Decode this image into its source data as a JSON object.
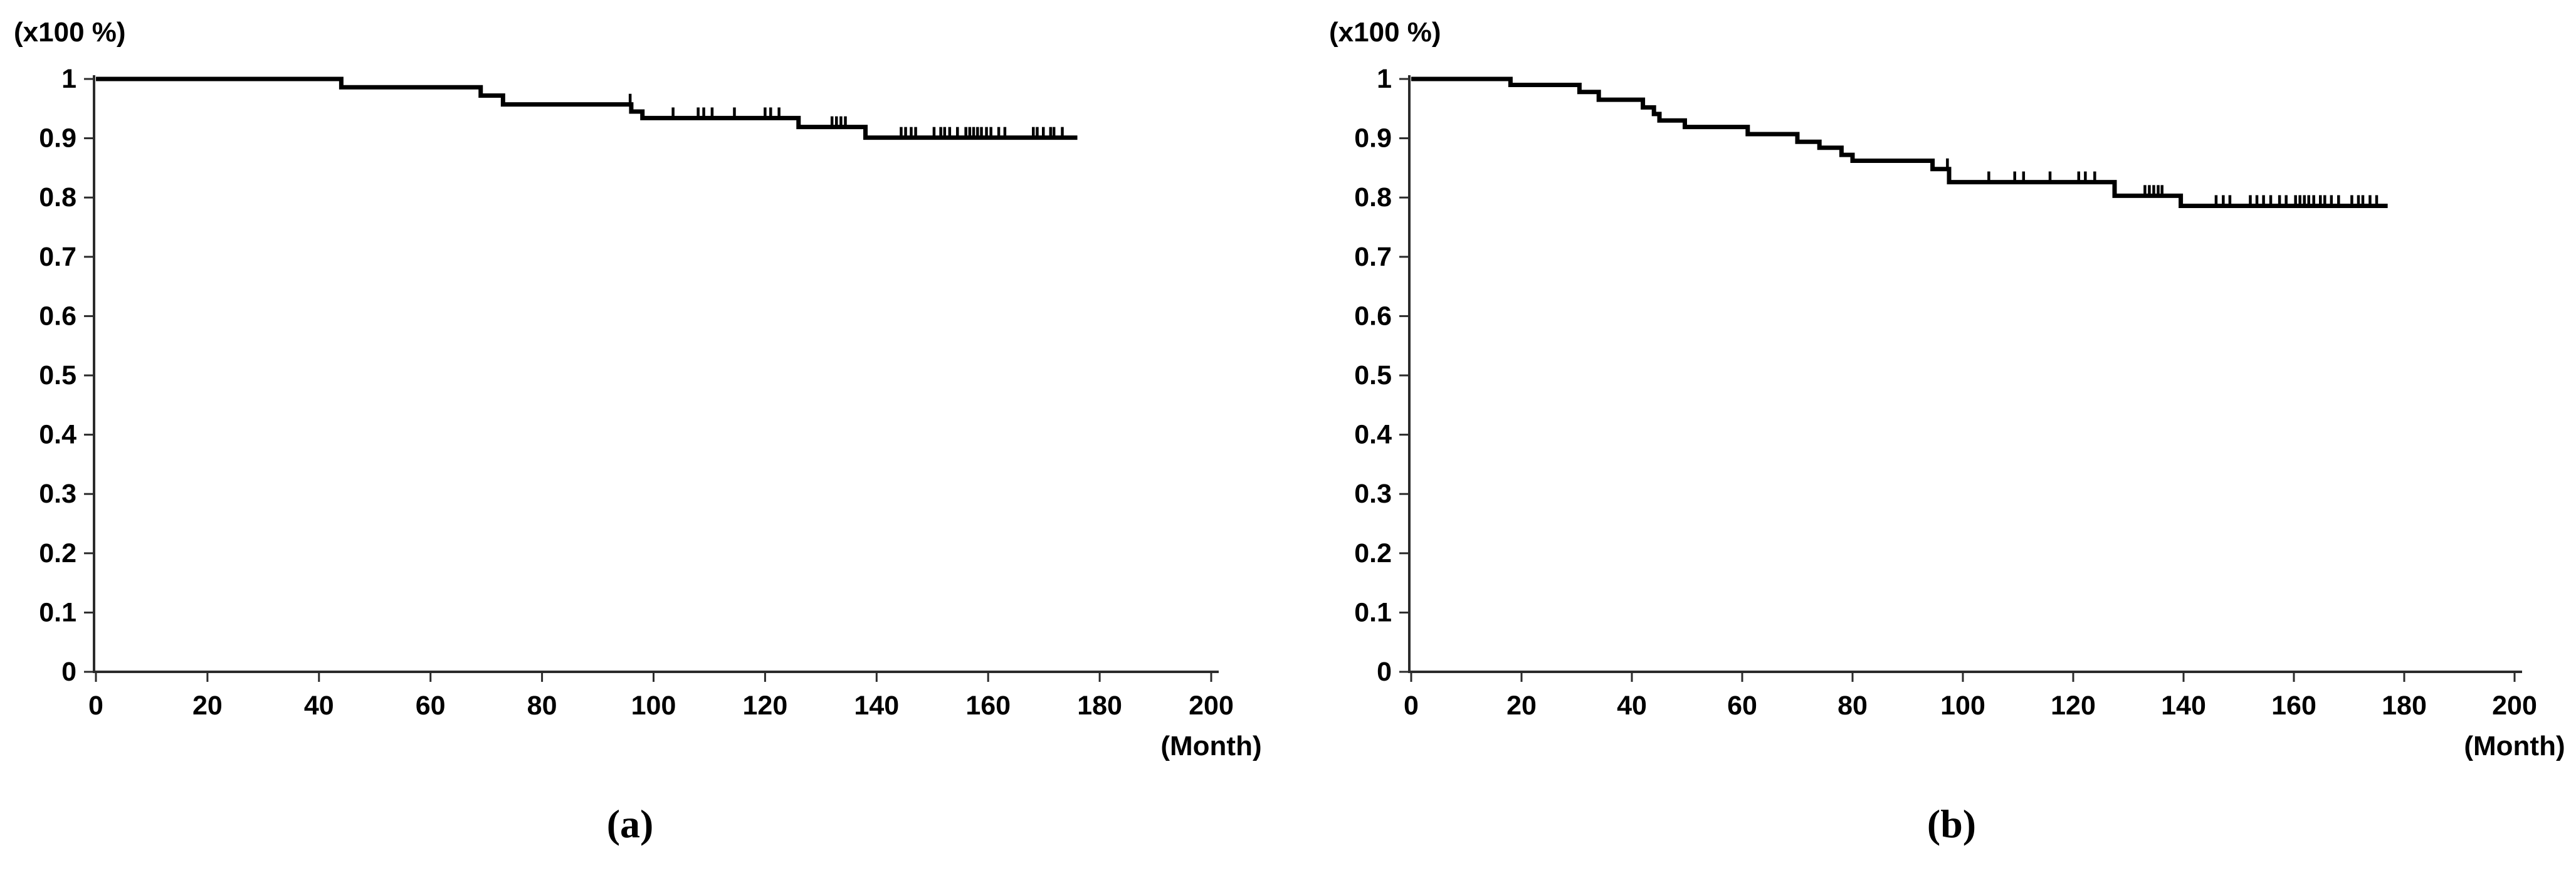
{
  "figure": {
    "background_color": "#ffffff",
    "curve_color": "#000000",
    "axis_color": "#2b2b2b",
    "tick_label_color": "#000000"
  },
  "chart_data": [
    {
      "type": "line",
      "subtype": "kaplan-meier-step",
      "caption": "(a)",
      "y_unit_label": "(x100 %)",
      "x_unit_label": "(Month)",
      "xlim": [
        0,
        200
      ],
      "ylim": [
        0,
        1
      ],
      "grid": false,
      "legend": "none",
      "x_ticks": [
        {
          "v": 0,
          "label": "0"
        },
        {
          "v": 20,
          "label": "20"
        },
        {
          "v": 40,
          "label": "40"
        },
        {
          "v": 60,
          "label": "60"
        },
        {
          "v": 80,
          "label": "80"
        },
        {
          "v": 100,
          "label": "100"
        },
        {
          "v": 120,
          "label": "120"
        },
        {
          "v": 140,
          "label": "140"
        },
        {
          "v": 160,
          "label": "160"
        },
        {
          "v": 180,
          "label": "180"
        },
        {
          "v": 200,
          "label": "200"
        }
      ],
      "y_ticks": [
        {
          "v": 0,
          "label": "0"
        },
        {
          "v": 0.1,
          "label": "0.1"
        },
        {
          "v": 0.2,
          "label": "0.2"
        },
        {
          "v": 0.3,
          "label": "0.3"
        },
        {
          "v": 0.4,
          "label": "0.4"
        },
        {
          "v": 0.5,
          "label": "0.5"
        },
        {
          "v": 0.6,
          "label": "0.6"
        },
        {
          "v": 0.7,
          "label": "0.7"
        },
        {
          "v": 0.8,
          "label": "0.8"
        },
        {
          "v": 0.9,
          "label": "0.9"
        },
        {
          "v": 1,
          "label": "1"
        }
      ],
      "steps": [
        [
          0,
          1.0
        ],
        [
          44,
          0.986
        ],
        [
          69,
          0.972
        ],
        [
          73,
          0.957
        ],
        [
          96,
          0.945
        ],
        [
          98,
          0.934
        ],
        [
          126,
          0.919
        ],
        [
          138,
          0.901
        ]
      ],
      "end_month": 176,
      "censor_months": [
        95.8,
        103.5,
        108,
        109,
        110.5,
        114.5,
        120,
        121,
        122.5,
        132,
        132.8,
        133.6,
        134.4,
        144.4,
        145.2,
        146.2,
        147,
        150.3,
        151.5,
        152.2,
        153.1,
        154.5,
        156,
        156.7,
        157.4,
        158.1,
        158.8,
        159.7,
        160.5,
        161.9,
        163,
        168.1,
        168.8,
        169.9,
        171.2,
        171.8,
        173.3
      ]
    },
    {
      "type": "line",
      "subtype": "kaplan-meier-step",
      "caption": "(b)",
      "y_unit_label": "(x100 %)",
      "x_unit_label": "(Month)",
      "xlim": [
        0,
        200
      ],
      "ylim": [
        0,
        1
      ],
      "grid": false,
      "legend": "none",
      "x_ticks": [
        {
          "v": 0,
          "label": "0"
        },
        {
          "v": 20,
          "label": "20"
        },
        {
          "v": 40,
          "label": "40"
        },
        {
          "v": 60,
          "label": "60"
        },
        {
          "v": 80,
          "label": "80"
        },
        {
          "v": 100,
          "label": "100"
        },
        {
          "v": 120,
          "label": "120"
        },
        {
          "v": 140,
          "label": "140"
        },
        {
          "v": 160,
          "label": "160"
        },
        {
          "v": 180,
          "label": "180"
        },
        {
          "v": 200,
          "label": "200"
        }
      ],
      "y_ticks": [
        {
          "v": 0,
          "label": "0"
        },
        {
          "v": 0.1,
          "label": "0.1"
        },
        {
          "v": 0.2,
          "label": "0.2"
        },
        {
          "v": 0.3,
          "label": "0.3"
        },
        {
          "v": 0.4,
          "label": "0.4"
        },
        {
          "v": 0.5,
          "label": "0.5"
        },
        {
          "v": 0.6,
          "label": "0.6"
        },
        {
          "v": 0.7,
          "label": "0.7"
        },
        {
          "v": 0.8,
          "label": "0.8"
        },
        {
          "v": 0.9,
          "label": "0.9"
        },
        {
          "v": 1,
          "label": "1"
        }
      ],
      "steps": [
        [
          0,
          1.0
        ],
        [
          18,
          0.99
        ],
        [
          30.5,
          0.978
        ],
        [
          34,
          0.965
        ],
        [
          42,
          0.952
        ],
        [
          44,
          0.941
        ],
        [
          45,
          0.93
        ],
        [
          49.6,
          0.919
        ],
        [
          61,
          0.907
        ],
        [
          70,
          0.894
        ],
        [
          74,
          0.884
        ],
        [
          78,
          0.872
        ],
        [
          80,
          0.862
        ],
        [
          94.5,
          0.848
        ],
        [
          97.5,
          0.826
        ],
        [
          127.5,
          0.803
        ],
        [
          139.5,
          0.786
        ]
      ],
      "end_month": 177,
      "censor_months": [
        97.2,
        104.7,
        109.4,
        111,
        115.8,
        121,
        122.2,
        123.9,
        133,
        133.8,
        134.6,
        135.4,
        136.1,
        145.9,
        147.2,
        148.4,
        152.1,
        153.3,
        154.5,
        155.8,
        157.4,
        158.6,
        160.3,
        161.1,
        161.9,
        162.7,
        163.6,
        164.8,
        165.6,
        166.8,
        168.1,
        170.5,
        171.7,
        172.5,
        173.8,
        175
      ]
    }
  ]
}
